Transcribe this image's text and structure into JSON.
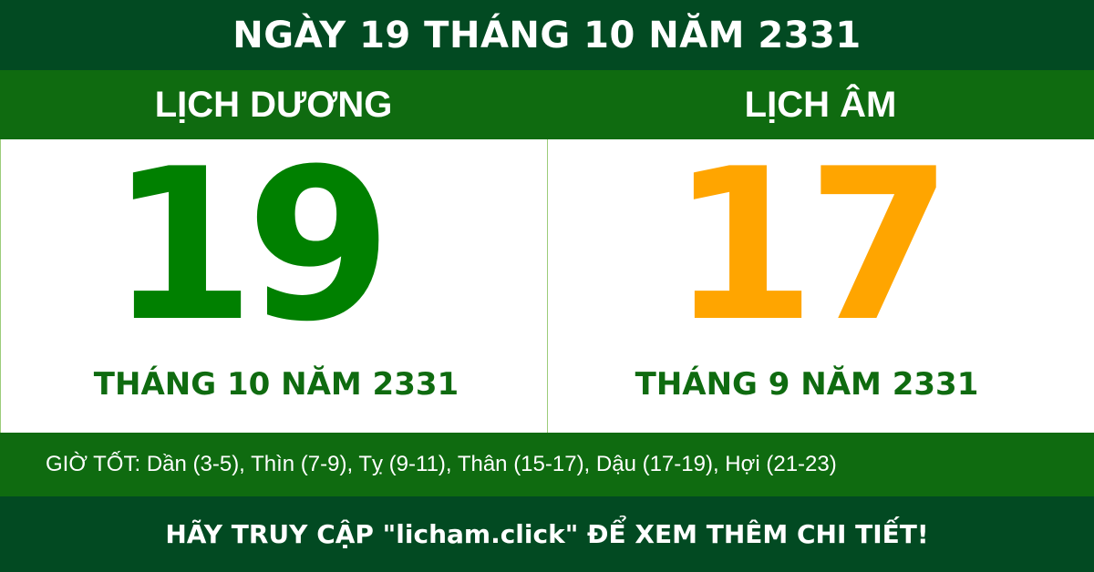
{
  "title": "NGÀY 19 THÁNG 10 NĂM 2331",
  "solar": {
    "heading": "LỊCH DƯƠNG",
    "day": "19",
    "month_year": "THÁNG 10 NĂM 2331"
  },
  "lunar": {
    "heading": "LỊCH ÂM",
    "day": "17",
    "month_year": "THÁNG 9 NĂM 2331"
  },
  "good_hours": "GIỜ TỐT: Dần (3-5), Thìn (7-9), Tỵ (9-11), Thân (15-17), Dậu (17-19), Hợi (21-23)",
  "footer": "HÃY TRUY CẬP \"licham.click\" ĐỂ XEM THÊM CHI TIẾT!",
  "colors": {
    "dark_green": "#024a22",
    "green": "#0f6b10",
    "solar_day": "#008000",
    "lunar_day": "#ffa500"
  }
}
